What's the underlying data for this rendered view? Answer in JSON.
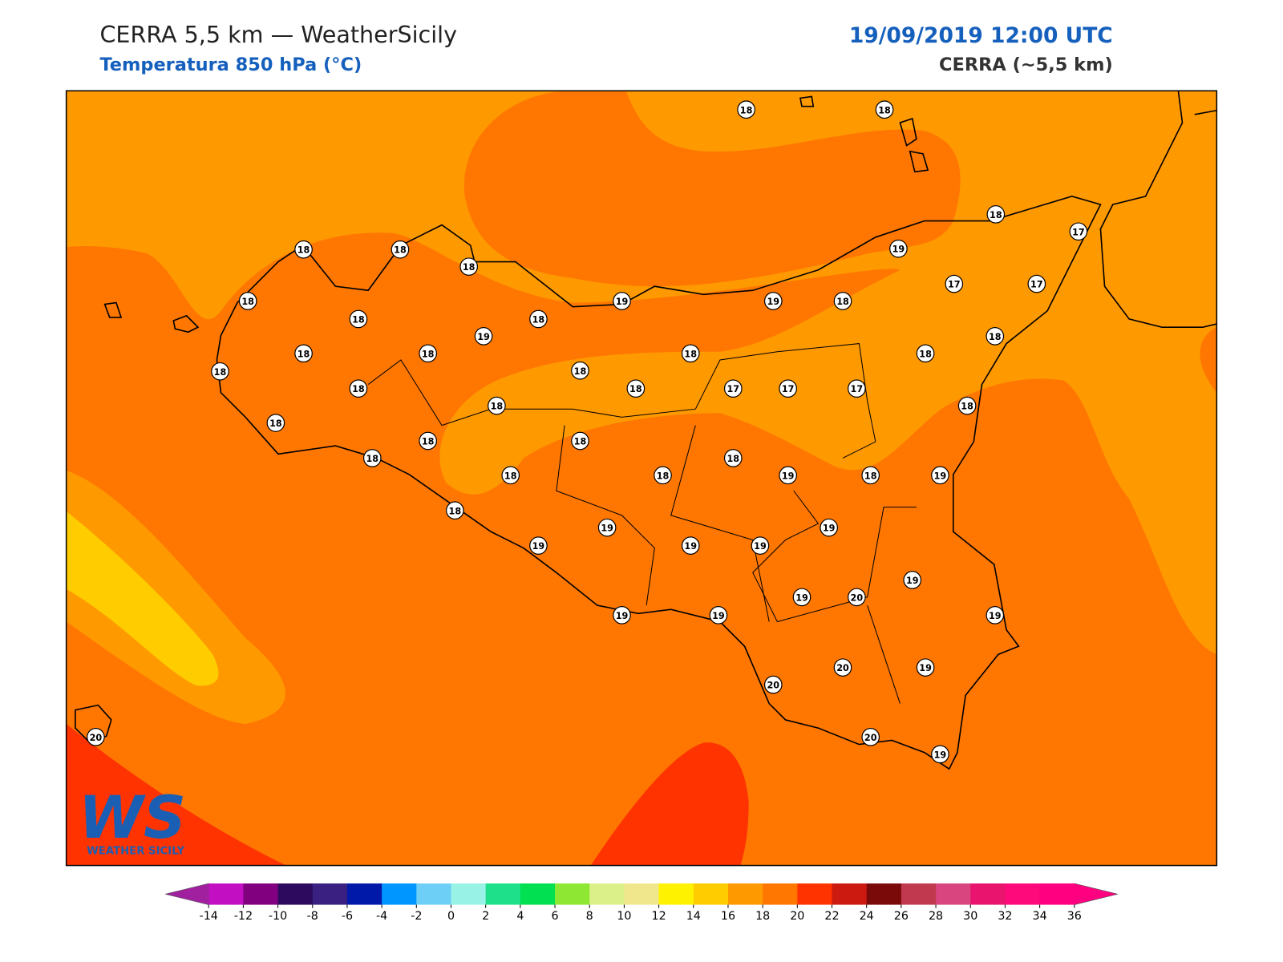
{
  "header": {
    "title": "CERRA 5,5 km — WeatherSicily",
    "subtitle": "Temperatura 850 hPa (°C)",
    "datetime": "19/09/2019 12:00 UTC",
    "model": "CERRA (~5,5 km)"
  },
  "logo": {
    "mark": "WS",
    "text": "WEATHER SICILY"
  },
  "stations": [
    18,
    18,
    18,
    18,
    18,
    18,
    17,
    19,
    18,
    18,
    19,
    18,
    19,
    19,
    18,
    17,
    17,
    18,
    18,
    18,
    18,
    18,
    18,
    18,
    18,
    18,
    17,
    17,
    17,
    18,
    18,
    18,
    18,
    18,
    18,
    18,
    18,
    18,
    19,
    18,
    19,
    18,
    19,
    19,
    19,
    19,
    19,
    19,
    19,
    20,
    19,
    19,
    19,
    20,
    19,
    20,
    20,
    20,
    19
  ],
  "colorbar": {
    "ticks": [
      -14,
      -12,
      -10,
      -8,
      -6,
      -4,
      -2,
      0,
      2,
      4,
      6,
      8,
      10,
      12,
      14,
      16,
      18,
      20,
      22,
      24,
      26,
      28,
      30,
      32,
      34,
      36
    ],
    "colors": [
      "#c20fc2",
      "#800080",
      "#2e0a5e",
      "#3a2080",
      "#0019a8",
      "#0096ff",
      "#6ecff6",
      "#99f2e6",
      "#1ee08a",
      "#00e050",
      "#8ee833",
      "#dcf08a",
      "#f0e68c",
      "#fff200",
      "#ffcc00",
      "#ff9900",
      "#ff7700",
      "#ff3300",
      "#cc1a10",
      "#7a0a0a",
      "#c0394f",
      "#d8457f",
      "#e8146e",
      "#ff0a7a",
      "#ff0080"
    ],
    "under": "#a020a0",
    "over": "#ff0080"
  }
}
